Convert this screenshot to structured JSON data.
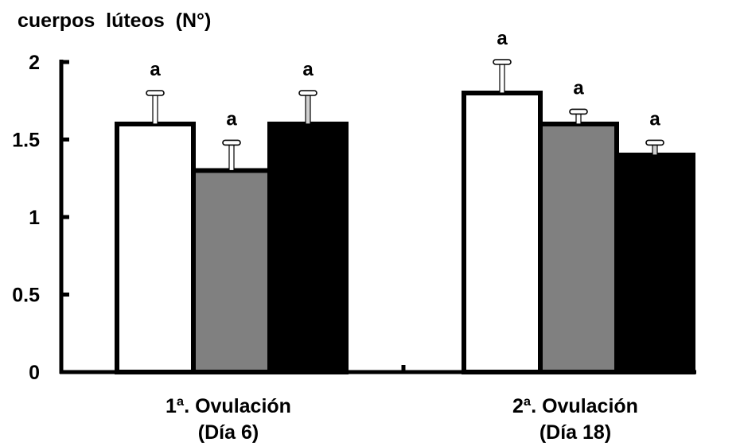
{
  "chart_data": {
    "type": "bar",
    "ylabel": "cuerpos  lúteos  (N°)",
    "xlabel": "",
    "ylim": [
      0,
      2
    ],
    "yticks": [
      {
        "value": 0,
        "label": "0"
      },
      {
        "value": 0.5,
        "label": "0.5"
      },
      {
        "value": 1,
        "label": "1"
      },
      {
        "value": 1.5,
        "label": "1.5"
      },
      {
        "value": 2,
        "label": "2"
      }
    ],
    "categories": [
      {
        "line1": "1ª. Ovulación",
        "line2": "(Día 6)"
      },
      {
        "line1": "2ª. Ovulación",
        "line2": "(Día 18)"
      }
    ],
    "series_colors": [
      "#ffffff",
      "#808080",
      "#000000"
    ],
    "values": [
      [
        1.6,
        1.3,
        1.6
      ],
      [
        1.8,
        1.6,
        1.4
      ]
    ],
    "errors": [
      [
        0.2,
        0.18,
        0.2
      ],
      [
        0.2,
        0.08,
        0.08
      ]
    ],
    "significance_labels": [
      [
        "a",
        "a",
        "a"
      ],
      [
        "a",
        "a",
        "a"
      ]
    ],
    "grid": false
  }
}
